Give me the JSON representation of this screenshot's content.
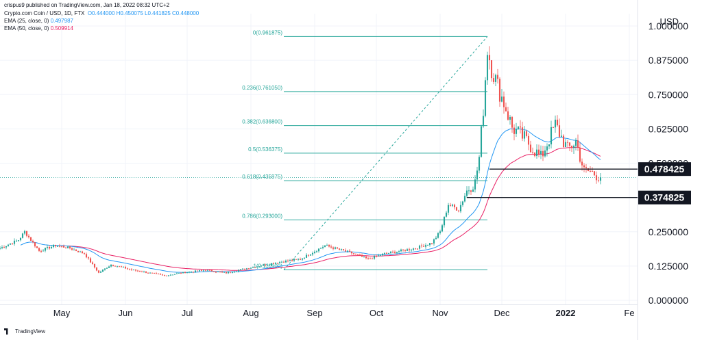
{
  "header": {
    "publisher": "crispus9 published on TradingView.com, Jan 18, 2022 08:32 UTC+2",
    "symbol_line": "Crypto.com Coin / USD, 1D, FTX",
    "ohlc": "O0.444000  H0.450075  L0.441825  C0.448000",
    "ema25": "EMA (25, close, 0)",
    "ema25_value": "0.497987",
    "ema50": "EMA (50, close, 0)",
    "ema50_value": "0.509914"
  },
  "footer": {
    "brand": "TradingView"
  },
  "colors": {
    "up": "#26a69a",
    "down": "#ef5350",
    "ema25": "#2196f3",
    "ema50": "#e91e63",
    "fib": "#26a69a",
    "grid": "#f0f3fa"
  },
  "chart_data": {
    "type": "candlestick",
    "yaxis_unit": "USD",
    "y_ticks": [
      "1.000000",
      "0.875000",
      "0.750000",
      "0.625000",
      "0.500000",
      "0.250000",
      "0.125000",
      "0.000000"
    ],
    "y_tick_values": [
      1.0,
      0.875,
      0.75,
      0.625,
      0.5,
      0.25,
      0.125,
      0.0
    ],
    "ylim": [
      -0.015,
      1.045
    ],
    "x_ticks": [
      "May",
      "Jun",
      "Jul",
      "Aug",
      "Sep",
      "Oct",
      "Nov",
      "Dec",
      "2022",
      "Fe"
    ],
    "x_tick_dates": [
      "2021-05-01",
      "2021-06-01",
      "2021-07-01",
      "2021-08-01",
      "2021-09-01",
      "2021-10-01",
      "2021-11-01",
      "2021-12-01",
      "2022-01-01",
      "2022-02-01"
    ],
    "xlim": [
      "2021-04-01",
      "2022-02-05"
    ],
    "last_price": 0.448,
    "fibonacci": {
      "levels": [
        {
          "label": "0(0.961875)",
          "value": 0.961875
        },
        {
          "label": "0.236(0.761050)",
          "value": 0.76105
        },
        {
          "label": "0.382(0.636800)",
          "value": 0.6368
        },
        {
          "label": "0.5(0.536375)",
          "value": 0.536375
        },
        {
          "label": "0.618(0.435975)",
          "value": 0.435975
        },
        {
          "label": "0.786(0.293000)",
          "value": 0.293
        },
        {
          "label": "1(0.110900)",
          "value": 0.1109
        }
      ],
      "start_date": "2021-08-17",
      "end_date": "2021-11-24"
    },
    "horizontal_lines": [
      {
        "label": "0.478425",
        "value": 0.478425,
        "start_date": "2021-11-25"
      },
      {
        "label": "0.374825",
        "value": 0.374825,
        "start_date": "2021-11-14"
      }
    ],
    "price_anchors": [
      [
        "2021-04-01",
        0.19
      ],
      [
        "2021-04-10",
        0.22
      ],
      [
        "2021-04-13",
        0.25
      ],
      [
        "2021-04-20",
        0.18
      ],
      [
        "2021-04-28",
        0.2
      ],
      [
        "2021-05-05",
        0.19
      ],
      [
        "2021-05-12",
        0.17
      ],
      [
        "2021-05-19",
        0.1
      ],
      [
        "2021-05-25",
        0.13
      ],
      [
        "2021-06-05",
        0.11
      ],
      [
        "2021-06-20",
        0.09
      ],
      [
        "2021-06-28",
        0.1
      ],
      [
        "2021-07-10",
        0.11
      ],
      [
        "2021-07-20",
        0.1
      ],
      [
        "2021-08-01",
        0.12
      ],
      [
        "2021-08-15",
        0.14
      ],
      [
        "2021-08-25",
        0.15
      ],
      [
        "2021-09-06",
        0.2
      ],
      [
        "2021-09-20",
        0.17
      ],
      [
        "2021-09-27",
        0.15
      ],
      [
        "2021-10-05",
        0.17
      ],
      [
        "2021-10-20",
        0.19
      ],
      [
        "2021-10-28",
        0.21
      ],
      [
        "2021-11-01",
        0.25
      ],
      [
        "2021-11-05",
        0.35
      ],
      [
        "2021-11-10",
        0.33
      ],
      [
        "2021-11-14",
        0.4
      ],
      [
        "2021-11-18",
        0.43
      ],
      [
        "2021-11-20",
        0.52
      ],
      [
        "2021-11-22",
        0.7
      ],
      [
        "2021-11-24",
        0.92
      ],
      [
        "2021-11-26",
        0.85
      ],
      [
        "2021-11-29",
        0.78
      ],
      [
        "2021-12-03",
        0.7
      ],
      [
        "2021-12-06",
        0.63
      ],
      [
        "2021-12-12",
        0.59
      ],
      [
        "2021-12-20",
        0.52
      ],
      [
        "2021-12-27",
        0.64
      ],
      [
        "2022-01-02",
        0.55
      ],
      [
        "2022-01-06",
        0.58
      ],
      [
        "2022-01-10",
        0.47
      ],
      [
        "2022-01-13",
        0.47
      ],
      [
        "2022-01-18",
        0.448
      ]
    ]
  }
}
